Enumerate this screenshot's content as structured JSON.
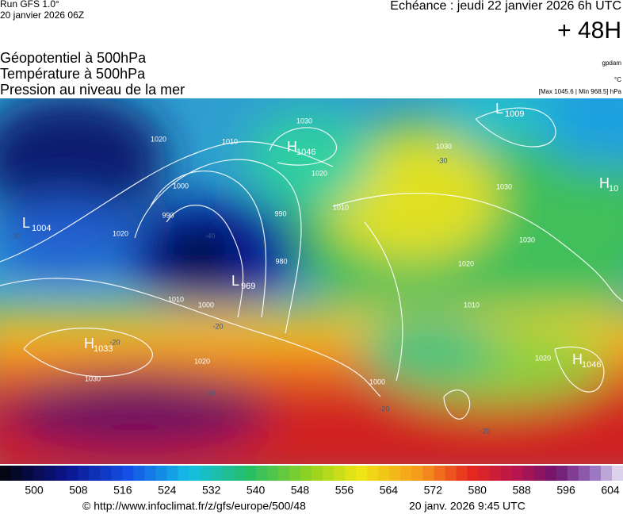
{
  "header": {
    "run": "Run GFS 1.0°",
    "run_date": "20 janvier 2026 06Z",
    "forecast": "Echéance : jeudi 22 janvier 2026 6h UTC",
    "lead": "+ 48H"
  },
  "titles": [
    "Géopotentiel à 500hPa",
    "Température à 500hPa",
    "Pression au niveau de la mer"
  ],
  "units": {
    "geopotential": "gpdam",
    "temperature": "°C",
    "pressure": "[Max 1045.6 | Min 968.5] hPa"
  },
  "centers": [
    {
      "letter": "L",
      "value": "1004"
    },
    {
      "letter": "H",
      "value": "1046"
    },
    {
      "letter": "L",
      "value": "969"
    },
    {
      "letter": "H",
      "value": "1033"
    },
    {
      "letter": "L",
      "value": "1009"
    },
    {
      "letter": "H",
      "value": "10"
    },
    {
      "letter": "H",
      "value": "1046"
    }
  ],
  "isobar_labels": [
    "1030",
    "1020",
    "1010",
    "1000",
    "990",
    "980",
    "1020",
    "1010",
    "1020",
    "1030",
    "1030",
    "1010",
    "990",
    "1000",
    "1010",
    "1020",
    "1030",
    "1030",
    "1000",
    "1020",
    "1020"
  ],
  "temperature_labels": [
    "-40",
    "-30",
    "-20",
    "-20",
    "-10",
    "-20",
    "-30",
    "-20"
  ],
  "colorbar": {
    "labels": [
      "500",
      "508",
      "516",
      "524",
      "532",
      "540",
      "548",
      "556",
      "564",
      "572",
      "580",
      "588",
      "596",
      "604"
    ]
  },
  "footer": {
    "url": "© http://www.infoclimat.fr/z/gfs/europe/500/48",
    "generated": "20 janv. 2026  9:45 UTC"
  }
}
